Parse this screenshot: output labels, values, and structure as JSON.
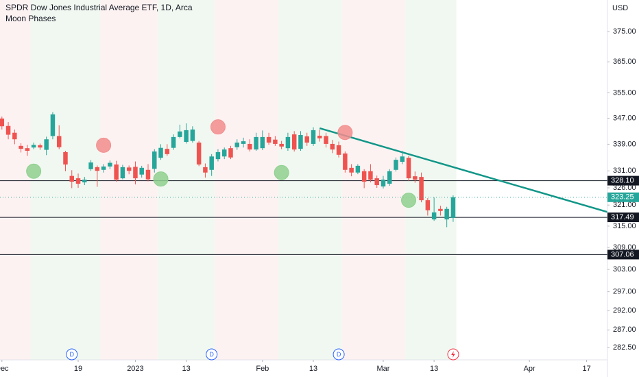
{
  "chart_data": {
    "type": "candlestick",
    "title": "SPDR Dow Jones Industrial Average ETF, 1D, Arca",
    "subtitle": "Moon Phases",
    "ylabel": "USD",
    "log_scale": true,
    "grid": false,
    "up_color": "#26a69a",
    "down_color": "#ef5350",
    "x": [
      -12,
      -11,
      -10,
      -9,
      -8,
      -7,
      -6,
      -5,
      -4,
      -3,
      -2,
      -1,
      0,
      1,
      2,
      3,
      4,
      5,
      6,
      7,
      8,
      9,
      10,
      11,
      12,
      13,
      14,
      15,
      16,
      17,
      18,
      19,
      20,
      21,
      22,
      23,
      24,
      25,
      26,
      27,
      28,
      29,
      30,
      31,
      32,
      33,
      34,
      35,
      36,
      37,
      38,
      39,
      40,
      41,
      42,
      43,
      44,
      45,
      46,
      47,
      48,
      49,
      50,
      51,
      52,
      53,
      54,
      55,
      56,
      57,
      58,
      59
    ],
    "open": [
      346.9,
      344.6,
      342.5,
      338.5,
      337.8,
      338.0,
      338.7,
      337.3,
      341.5,
      341.5,
      336.6,
      329.5,
      328.8,
      327.6,
      331.5,
      332.1,
      331.3,
      332.3,
      332.9,
      328.8,
      332.0,
      332.2,
      329.9,
      331.3,
      331.6,
      334.9,
      337.6,
      337.9,
      341.2,
      339.7,
      340.0,
      339.5,
      332.1,
      331.3,
      334.5,
      335.3,
      337.8,
      338.1,
      339.1,
      339.1,
      337.4,
      337.8,
      341.2,
      340.4,
      339.1,
      337.8,
      342.0,
      337.6,
      341.4,
      339.1,
      341.6,
      341.5,
      339.1,
      338.7,
      336.2,
      331.9,
      330.5,
      330.9,
      330.9,
      328.8,
      326.4,
      327.2,
      331.3,
      333.7,
      334.9,
      329.4,
      329.2,
      322.4,
      316.9,
      319.9,
      316.9,
      317.3
    ],
    "high": [
      347.5,
      345.8,
      343.5,
      339.3,
      338.8,
      339.5,
      339.2,
      341.3,
      348.9,
      344.8,
      337.0,
      331.2,
      330.2,
      329.2,
      334.2,
      332.6,
      333.0,
      334.1,
      334.0,
      332.8,
      332.6,
      333.8,
      332.5,
      333.0,
      337.5,
      339.0,
      339.0,
      342.0,
      345.0,
      345.4,
      344.5,
      340.0,
      333.2,
      336.0,
      337.5,
      338.0,
      338.5,
      340.5,
      341.0,
      340.5,
      342.5,
      343.2,
      342.5,
      341.5,
      340.0,
      342.5,
      343.0,
      343.0,
      342.5,
      344.2,
      343.5,
      342.5,
      340.3,
      339.8,
      336.8,
      333.0,
      333.0,
      331.5,
      333.0,
      329.6,
      329.5,
      331.5,
      335.0,
      337.0,
      335.5,
      330.8,
      330.5,
      323.0,
      323.2,
      320.8,
      320.5,
      323.8
    ],
    "low": [
      343.5,
      340.5,
      339.0,
      336.5,
      335.5,
      337.5,
      337.3,
      335.7,
      340.5,
      337.5,
      330.9,
      325.9,
      326.0,
      326.8,
      331.0,
      326.3,
      330.5,
      331.5,
      327.8,
      328.5,
      330.0,
      327.0,
      329.0,
      327.9,
      330.5,
      334.3,
      335.5,
      337.3,
      340.8,
      339.2,
      339.5,
      332.4,
      329.0,
      329.5,
      333.8,
      334.5,
      334.5,
      337.3,
      338.0,
      336.8,
      337.0,
      337.2,
      338.8,
      338.5,
      337.5,
      337.0,
      336.8,
      337.0,
      338.5,
      338.5,
      339.8,
      338.0,
      336.3,
      335.0,
      330.5,
      329.4,
      330.0,
      325.9,
      327.6,
      326.0,
      325.8,
      326.6,
      330.8,
      333.0,
      328.0,
      327.5,
      321.8,
      318.0,
      316.5,
      318.0,
      314.7,
      316.2
    ],
    "close": [
      344.5,
      341.9,
      340.5,
      337.6,
      337.0,
      338.8,
      338.0,
      340.5,
      348.2,
      338.1,
      332.9,
      327.8,
      327.2,
      328.4,
      333.5,
      331.0,
      332.3,
      333.4,
      328.4,
      332.1,
      331.0,
      328.8,
      331.9,
      328.5,
      336.8,
      337.9,
      336.0,
      341.2,
      342.9,
      343.3,
      343.5,
      332.9,
      330.5,
      335.3,
      336.6,
      337.4,
      335.0,
      339.5,
      339.9,
      337.4,
      341.2,
      341.2,
      339.5,
      339.1,
      338.3,
      341.2,
      337.4,
      341.8,
      339.5,
      343.3,
      340.8,
      339.1,
      337.4,
      335.8,
      331.3,
      330.5,
      332.5,
      327.8,
      328.4,
      326.8,
      328.4,
      330.9,
      334.3,
      335.3,
      328.8,
      328.4,
      322.4,
      319.5,
      318.9,
      319.3,
      319.9,
      323.25
    ],
    "xlim": [
      -12.3,
      83.28
    ],
    "xticks": [
      {
        "value": -12,
        "label": "Dec"
      },
      {
        "value": 0,
        "label": "19"
      },
      {
        "value": 9,
        "label": "2023"
      },
      {
        "value": 17,
        "label": "13"
      },
      {
        "value": 29,
        "label": "Feb"
      },
      {
        "value": 37,
        "label": "13"
      },
      {
        "value": 48,
        "label": "Mar"
      },
      {
        "value": 56,
        "label": "13"
      },
      {
        "value": 71,
        "label": "Apr"
      },
      {
        "value": 80,
        "label": "17"
      }
    ],
    "ylim": [
      279.4,
      385.8
    ],
    "yticks": [
      {
        "value": 375,
        "label": "375.00"
      },
      {
        "value": 365,
        "label": "365.00"
      },
      {
        "value": 355,
        "label": "355.00"
      },
      {
        "value": 347,
        "label": "347.00"
      },
      {
        "value": 339,
        "label": "339.00"
      },
      {
        "value": 331,
        "label": "331.00"
      },
      {
        "value": 326,
        "label": "326.00"
      },
      {
        "value": 321,
        "label": "321.00"
      },
      {
        "value": 315,
        "label": "315.00"
      },
      {
        "value": 309,
        "label": "309.00"
      },
      {
        "value": 303,
        "label": "303.00"
      },
      {
        "value": 297,
        "label": "297.00"
      },
      {
        "value": 292,
        "label": "292.00"
      },
      {
        "value": 287,
        "label": "287.00"
      },
      {
        "value": 282.5,
        "label": "282.50"
      }
    ],
    "horizontal_lines": [
      {
        "value": 328.1,
        "label": "328.10"
      },
      {
        "value": 317.49,
        "label": "317.49"
      },
      {
        "value": 307.06,
        "label": "307.06"
      }
    ],
    "horizontal_line_color": "#131722",
    "trendline": {
      "x": [
        38,
        83.28
      ],
      "y": [
        343.9,
        319.0
      ],
      "color": "#119688"
    },
    "moon_phases": [
      {
        "name": "full",
        "x": [
          -7,
          13,
          32,
          52
        ],
        "y": [
          330.9,
          328.6,
          330.5,
          322.4
        ],
        "color": "#8fd08f",
        "band_color": "#f1f8f1"
      },
      {
        "name": "new",
        "x": [
          4,
          22,
          42
        ],
        "y": [
          338.7,
          344.3,
          342.6
        ],
        "color": "#f28d8d",
        "band_color": "#fdf2f2"
      }
    ],
    "events": {
      "x": [
        -1,
        21,
        41
      ],
      "labels": [
        "D",
        "D",
        "D"
      ],
      "color": "#2962ff"
    }
  }
}
